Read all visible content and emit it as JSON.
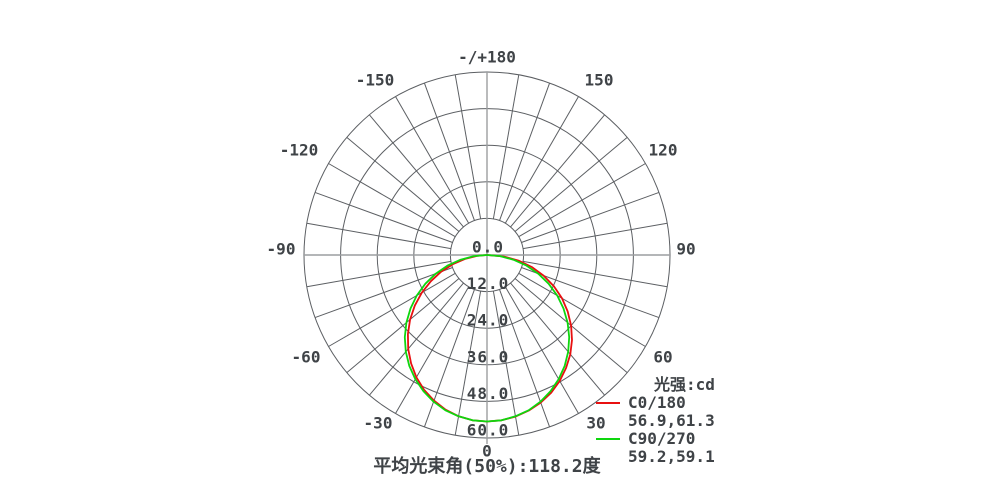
{
  "chart_data": {
    "type": "polar_line",
    "title": "",
    "units_label": "光强:cd",
    "footer": "平均光束角(50%):118.2度",
    "zero_angle_position": "bottom",
    "r_max": 60,
    "ring_step": 12,
    "spoke_step_deg": 10,
    "grid": true,
    "radial_tick_labels": [
      "0.0",
      "12.0",
      "24.0",
      "36.0",
      "48.0",
      "60.0"
    ],
    "angle_tick_labels": [
      {
        "angle": 180,
        "label": "-/+180"
      },
      {
        "angle": 150,
        "label": "150"
      },
      {
        "angle": 120,
        "label": "120"
      },
      {
        "angle": 90,
        "label": "90"
      },
      {
        "angle": 60,
        "label": "60"
      },
      {
        "angle": 30,
        "label": "30"
      },
      {
        "angle": 0,
        "label": "0"
      },
      {
        "angle": -30,
        "label": "-30"
      },
      {
        "angle": -60,
        "label": "-60"
      },
      {
        "angle": -90,
        "label": "-90"
      },
      {
        "angle": -120,
        "label": "-120"
      },
      {
        "angle": -150,
        "label": "-150"
      }
    ],
    "legend_position": "right-bottom",
    "series": [
      {
        "name": "C0/180",
        "color": "#e81010",
        "beam_half_angles_50pct": "56.9,61.3",
        "angles_deg": [
          -90,
          -85,
          -80,
          -75,
          -70,
          -65,
          -60,
          -55,
          -50,
          -45,
          -40,
          -35,
          -30,
          -25,
          -20,
          -15,
          -10,
          -5,
          0,
          5,
          10,
          15,
          20,
          25,
          30,
          35,
          40,
          45,
          50,
          55,
          60,
          65,
          70,
          75,
          80,
          85,
          90
        ],
        "intensities_cd": [
          0,
          3.3,
          7.3,
          11.6,
          16.0,
          20.3,
          24.7,
          28.9,
          32.9,
          36.7,
          40.2,
          43.4,
          46.3,
          48.8,
          50.8,
          52.5,
          53.7,
          54.4,
          54.6,
          54.4,
          53.8,
          52.8,
          51.5,
          49.8,
          47.7,
          45.2,
          42.5,
          39.4,
          36.0,
          32.3,
          28.4,
          24.2,
          19.8,
          15.2,
          10.5,
          5.5,
          0
        ]
      },
      {
        "name": "C90/270",
        "color": "#0ed60e",
        "beam_half_angles_50pct": "59.2,59.1",
        "angles_deg": [
          -90,
          -85,
          -80,
          -75,
          -70,
          -65,
          -60,
          -55,
          -50,
          -45,
          -40,
          -35,
          -30,
          -25,
          -20,
          -15,
          -10,
          -5,
          0,
          5,
          10,
          15,
          20,
          25,
          30,
          35,
          40,
          45,
          50,
          55,
          60,
          65,
          70,
          75,
          80,
          85,
          90
        ],
        "intensities_cd": [
          0,
          4.3,
          8.8,
          13.4,
          17.9,
          22.3,
          26.6,
          30.6,
          34.5,
          38.1,
          41.4,
          44.4,
          47.0,
          49.3,
          51.2,
          52.7,
          53.7,
          54.4,
          54.6,
          54.4,
          53.7,
          52.7,
          51.2,
          49.3,
          47.0,
          44.4,
          41.4,
          38.1,
          34.5,
          30.6,
          26.6,
          22.3,
          17.9,
          13.4,
          8.8,
          4.3,
          0
        ]
      }
    ]
  },
  "colors": {
    "grid": "#5c5f63",
    "axis": "#9c9ea0",
    "text": "#3f4347",
    "background": "#ffffff"
  }
}
